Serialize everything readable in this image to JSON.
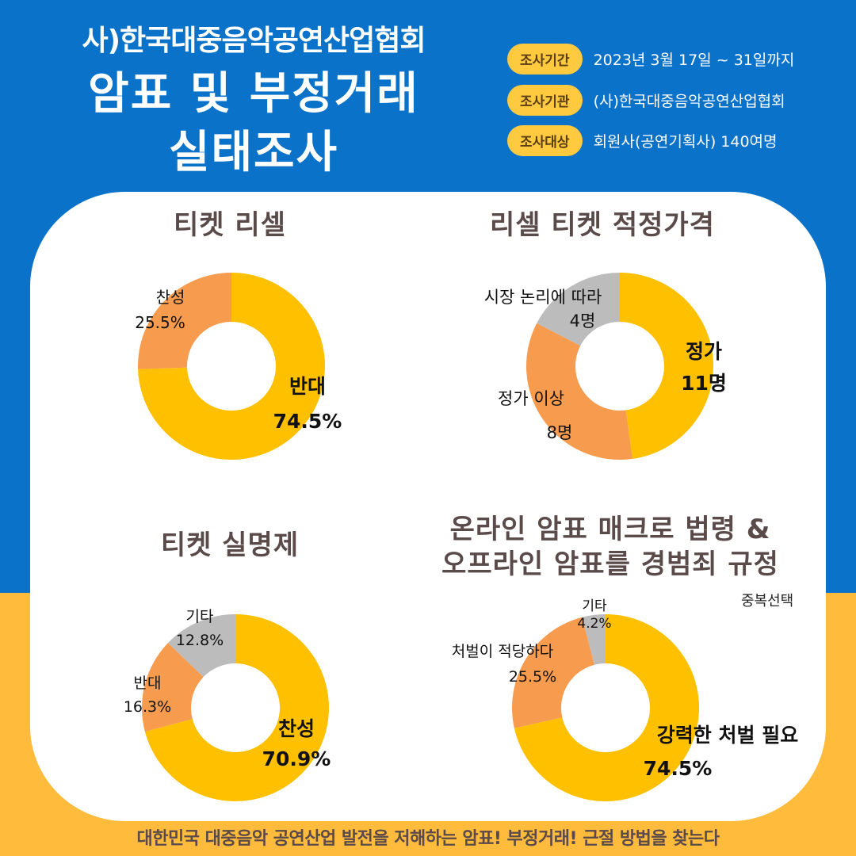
{
  "header": {
    "org_title": "사)한국대중음악공연산업협회",
    "title_line1": "암표 및 부정거래",
    "title_line2": "실태조사"
  },
  "info": [
    {
      "label": "조사기간",
      "value": "2023년 3월 17일 ~ 31일까지"
    },
    {
      "label": "조사기관",
      "value": "(사)한국대중음악공연산업협회"
    },
    {
      "label": "조사대상",
      "value": "회원사(공연기획사) 140여명"
    }
  ],
  "footer": "대한민국 대중음악 공연산업 발전을 저해하는 암표! 부정거래! 근절 방법을 찾는다",
  "colors": {
    "background_top": "#0a72c8",
    "background_bottom": "#ffbb3b",
    "panel": "#ffffff",
    "yellow": "#ffc000",
    "orange": "#f79b4f",
    "gray": "#bcbcbc",
    "pill": "#ffc940"
  },
  "chart_data": [
    {
      "type": "pie",
      "title": "티켓 리셀",
      "categories": [
        "반대",
        "찬성"
      ],
      "values": [
        74.5,
        25.5
      ],
      "labels": [
        [
          "반대",
          "74.5%"
        ],
        [
          "찬성",
          "25.5%"
        ]
      ],
      "colors": [
        "#ffc000",
        "#f79b4f"
      ]
    },
    {
      "type": "pie",
      "title": "리셀 티켓 적정가격",
      "categories": [
        "정가",
        "정가 이상",
        "시장 논리에 따라"
      ],
      "values": [
        11,
        8,
        4
      ],
      "labels": [
        [
          "정가",
          "11명"
        ],
        [
          "정가 이상",
          "8명"
        ],
        [
          "시장 논리에 따라",
          "4명"
        ]
      ],
      "colors": [
        "#ffc000",
        "#f79b4f",
        "#bcbcbc"
      ]
    },
    {
      "type": "pie",
      "title": "티켓 실명제",
      "categories": [
        "찬성",
        "반대",
        "기타"
      ],
      "values": [
        70.9,
        16.3,
        12.8
      ],
      "labels": [
        [
          "찬성",
          "70.9%"
        ],
        [
          "반대",
          "16.3%"
        ],
        [
          "기타",
          "12.8%"
        ]
      ],
      "colors": [
        "#ffc000",
        "#f79b4f",
        "#bcbcbc"
      ]
    },
    {
      "type": "pie",
      "title": [
        "온라인 암표 매크로 법령 &",
        "오프라인 암표를 경범죄 규정"
      ],
      "note": "중복선택",
      "categories": [
        "강력한 처벌 필요",
        "처벌이 적당하다",
        "기타"
      ],
      "values": [
        74.5,
        25.5,
        4.2
      ],
      "labels": [
        [
          "강력한 처벌 필요",
          "74.5%"
        ],
        [
          "처벌이 적당하다",
          "25.5%"
        ],
        [
          "기타",
          "4.2%"
        ]
      ],
      "colors": [
        "#ffc000",
        "#f79b4f",
        "#bcbcbc"
      ]
    }
  ]
}
